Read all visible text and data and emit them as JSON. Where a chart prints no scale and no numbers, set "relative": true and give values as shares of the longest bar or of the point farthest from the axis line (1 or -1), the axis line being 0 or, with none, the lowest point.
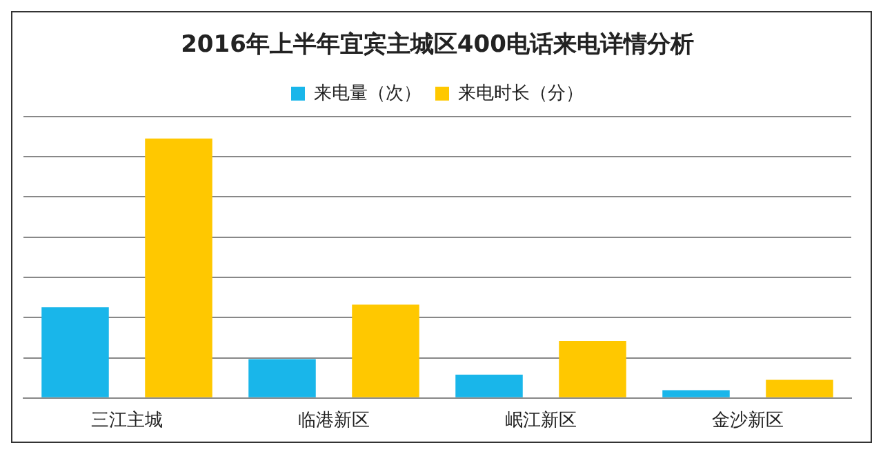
{
  "chart_data": {
    "type": "bar",
    "title": "2016年上半年宜宾主城区400电话来电详情分析",
    "categories": [
      "三江主城",
      "临港新区",
      "岷江新区",
      "金沙新区"
    ],
    "relative": true,
    "grid": "y",
    "legend": "top",
    "series": [
      {
        "name": "来电量（次）",
        "color": "#19b6ea",
        "values": [
          0.35,
          0.15,
          0.09,
          0.03
        ]
      },
      {
        "name": "来电时长（分）",
        "color": "#ffc800",
        "values": [
          1,
          0.36,
          0.22,
          0.07
        ]
      }
    ]
  }
}
